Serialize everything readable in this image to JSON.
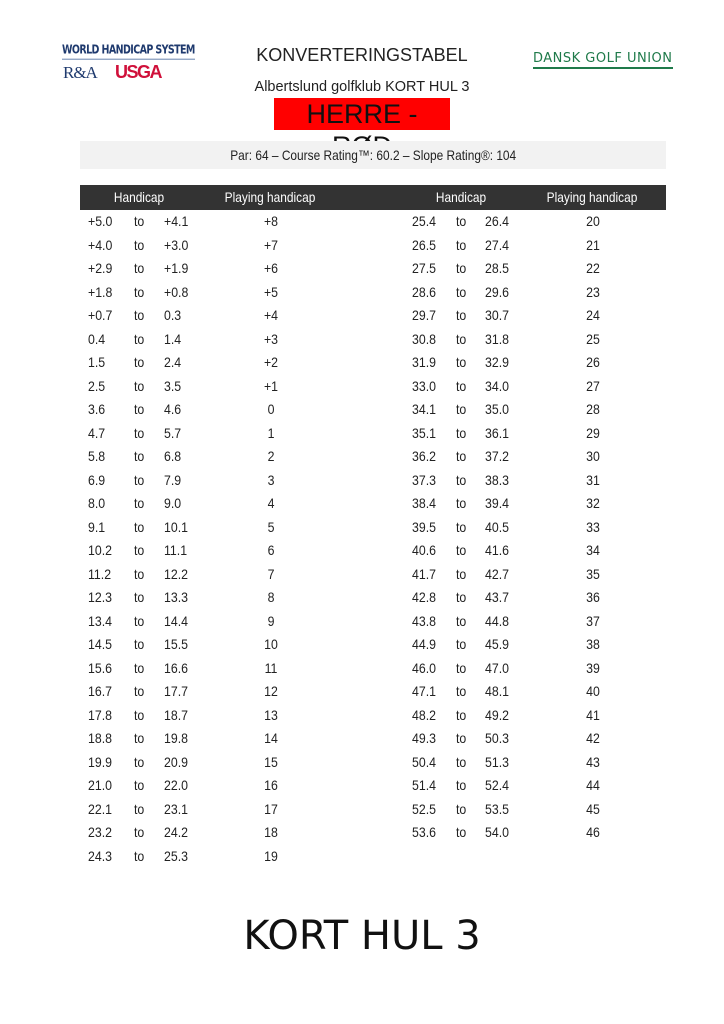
{
  "logos": {
    "whs": "WORLD HANDICAP SYSTEM",
    "ra": "R&A",
    "usga": "USGA",
    "dgu": "DANSK GOLF UNION"
  },
  "header": {
    "title": "KONVERTERINGSTABEL",
    "subtitle": "Albertslund golfklub KORT HUL 3",
    "tee": "HERRE - RØD",
    "tee_color": "#ff0000",
    "ratings": "Par: 64 – Course Rating™: 60.2 – Slope Rating®: 104"
  },
  "table": {
    "columns": [
      "Handicap",
      "Playing handicap",
      "Handicap",
      "Playing handicap"
    ],
    "separator": "to",
    "left_rows": [
      [
        "+5.0",
        "+4.1",
        "+8"
      ],
      [
        "+4.0",
        "+3.0",
        "+7"
      ],
      [
        "+2.9",
        "+1.9",
        "+6"
      ],
      [
        "+1.8",
        "+0.8",
        "+5"
      ],
      [
        "+0.7",
        "0.3",
        "+4"
      ],
      [
        "0.4",
        "1.4",
        "+3"
      ],
      [
        "1.5",
        "2.4",
        "+2"
      ],
      [
        "2.5",
        "3.5",
        "+1"
      ],
      [
        "3.6",
        "4.6",
        "0"
      ],
      [
        "4.7",
        "5.7",
        "1"
      ],
      [
        "5.8",
        "6.8",
        "2"
      ],
      [
        "6.9",
        "7.9",
        "3"
      ],
      [
        "8.0",
        "9.0",
        "4"
      ],
      [
        "9.1",
        "10.1",
        "5"
      ],
      [
        "10.2",
        "11.1",
        "6"
      ],
      [
        "11.2",
        "12.2",
        "7"
      ],
      [
        "12.3",
        "13.3",
        "8"
      ],
      [
        "13.4",
        "14.4",
        "9"
      ],
      [
        "14.5",
        "15.5",
        "10"
      ],
      [
        "15.6",
        "16.6",
        "11"
      ],
      [
        "16.7",
        "17.7",
        "12"
      ],
      [
        "17.8",
        "18.7",
        "13"
      ],
      [
        "18.8",
        "19.8",
        "14"
      ],
      [
        "19.9",
        "20.9",
        "15"
      ],
      [
        "21.0",
        "22.0",
        "16"
      ],
      [
        "22.1",
        "23.1",
        "17"
      ],
      [
        "23.2",
        "24.2",
        "18"
      ],
      [
        "24.3",
        "25.3",
        "19"
      ]
    ],
    "right_rows": [
      [
        "25.4",
        "26.4",
        "20"
      ],
      [
        "26.5",
        "27.4",
        "21"
      ],
      [
        "27.5",
        "28.5",
        "22"
      ],
      [
        "28.6",
        "29.6",
        "23"
      ],
      [
        "29.7",
        "30.7",
        "24"
      ],
      [
        "30.8",
        "31.8",
        "25"
      ],
      [
        "31.9",
        "32.9",
        "26"
      ],
      [
        "33.0",
        "34.0",
        "27"
      ],
      [
        "34.1",
        "35.0",
        "28"
      ],
      [
        "35.1",
        "36.1",
        "29"
      ],
      [
        "36.2",
        "37.2",
        "30"
      ],
      [
        "37.3",
        "38.3",
        "31"
      ],
      [
        "38.4",
        "39.4",
        "32"
      ],
      [
        "39.5",
        "40.5",
        "33"
      ],
      [
        "40.6",
        "41.6",
        "34"
      ],
      [
        "41.7",
        "42.7",
        "35"
      ],
      [
        "42.8",
        "43.7",
        "36"
      ],
      [
        "43.8",
        "44.8",
        "37"
      ],
      [
        "44.9",
        "45.9",
        "38"
      ],
      [
        "46.0",
        "47.0",
        "39"
      ],
      [
        "47.1",
        "48.1",
        "40"
      ],
      [
        "48.2",
        "49.2",
        "41"
      ],
      [
        "49.3",
        "50.3",
        "42"
      ],
      [
        "50.4",
        "51.3",
        "43"
      ],
      [
        "51.4",
        "52.4",
        "44"
      ],
      [
        "52.5",
        "53.5",
        "45"
      ],
      [
        "53.6",
        "54.0",
        "46"
      ]
    ]
  },
  "footer": "KORT HUL 3"
}
